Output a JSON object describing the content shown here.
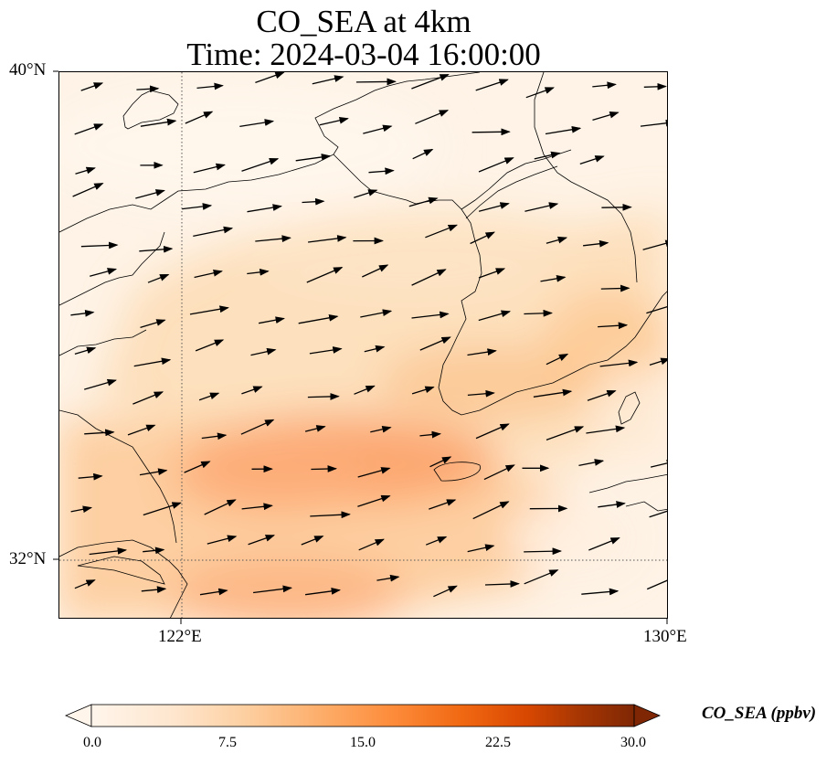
{
  "title": {
    "line1": "CO_SEA at 4km",
    "line2": "Time: 2024-03-04 16:00:00"
  },
  "axes": {
    "lat_labels": [
      "40°N",
      "32°N"
    ],
    "lon_labels": [
      "122°E",
      "130°E"
    ],
    "lon_range": [
      120.4,
      130.0
    ],
    "lat_range": [
      31.0,
      40.0
    ],
    "gridlines": {
      "lon": [
        122
      ],
      "lat": [
        32
      ],
      "style": "dotted"
    }
  },
  "colorbar": {
    "label": "CO_SEA (ppbv)",
    "ticks": [
      "0.0",
      "7.5",
      "15.0",
      "22.5",
      "30.0"
    ],
    "range": [
      0,
      30
    ],
    "extend": "both",
    "colors": [
      "#fff5eb",
      "#fee6ce",
      "#fdd0a2",
      "#fdae6b",
      "#fd8d3c",
      "#f16913",
      "#d94801",
      "#a63603",
      "#7f2704"
    ]
  },
  "map": {
    "field_note_colors": {
      "low": "#fff5eb",
      "mid": "#fdd0a2",
      "high": "#fd8d3c"
    },
    "coastline_color": "#000000"
  }
}
